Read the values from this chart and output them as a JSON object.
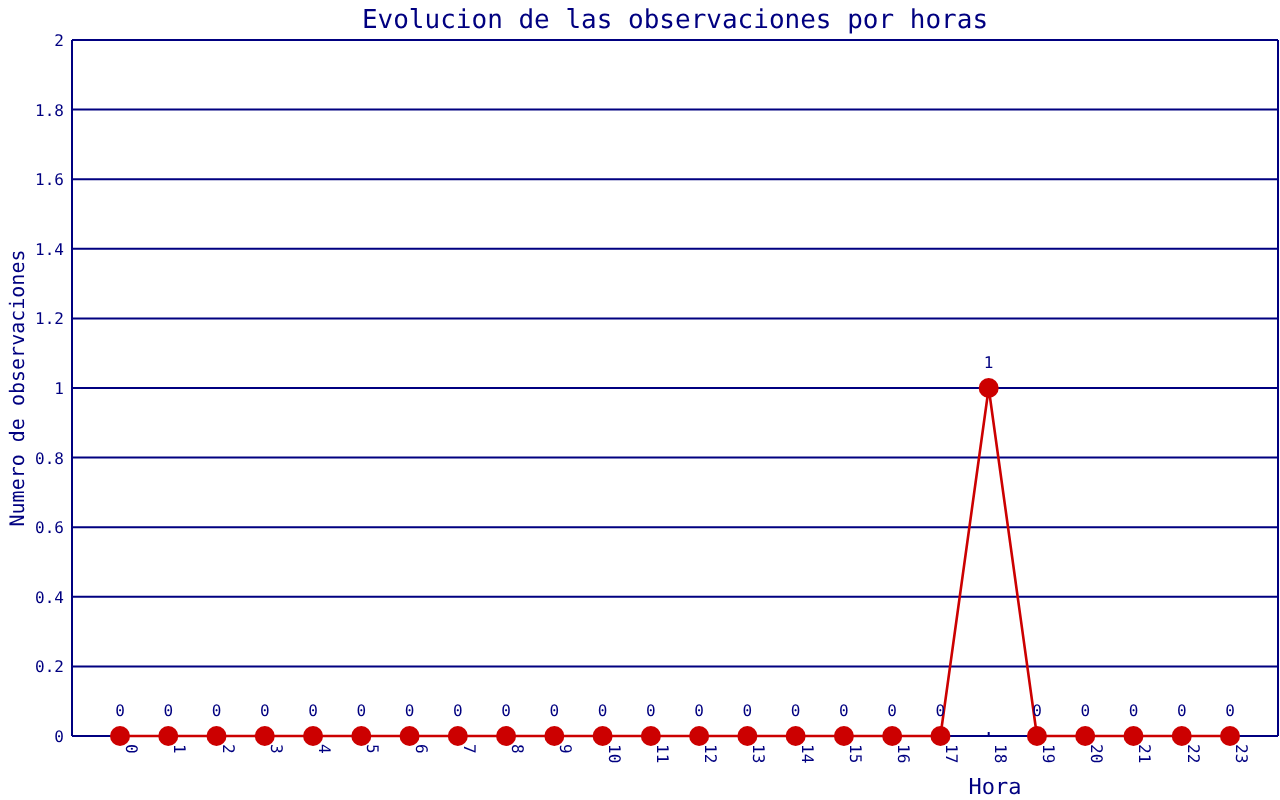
{
  "chart_data": {
    "type": "line",
    "title": "Evolucion de las observaciones por horas",
    "xlabel": "Hora",
    "ylabel": "Numero de observaciones",
    "categories": [
      "0",
      "1",
      "2",
      "3",
      "4",
      "5",
      "6",
      "7",
      "8",
      "9",
      "10",
      "11",
      "12",
      "13",
      "14",
      "15",
      "16",
      "17",
      "18",
      "19",
      "20",
      "21",
      "22",
      "23"
    ],
    "series": [
      {
        "color": "#cc0000",
        "values": [
          0,
          0,
          0,
          0,
          0,
          0,
          0,
          0,
          0,
          0,
          0,
          0,
          0,
          0,
          0,
          0,
          0,
          0,
          1,
          0,
          0,
          0,
          0,
          0
        ]
      }
    ],
    "ylim": [
      0,
      2
    ],
    "yticks": [
      0,
      0.2,
      0.4,
      0.6,
      0.8,
      1,
      1.2,
      1.4,
      1.6,
      1.8,
      2
    ],
    "grid": "y",
    "marker": "circle",
    "line_style": "solid",
    "data_labels": true
  }
}
